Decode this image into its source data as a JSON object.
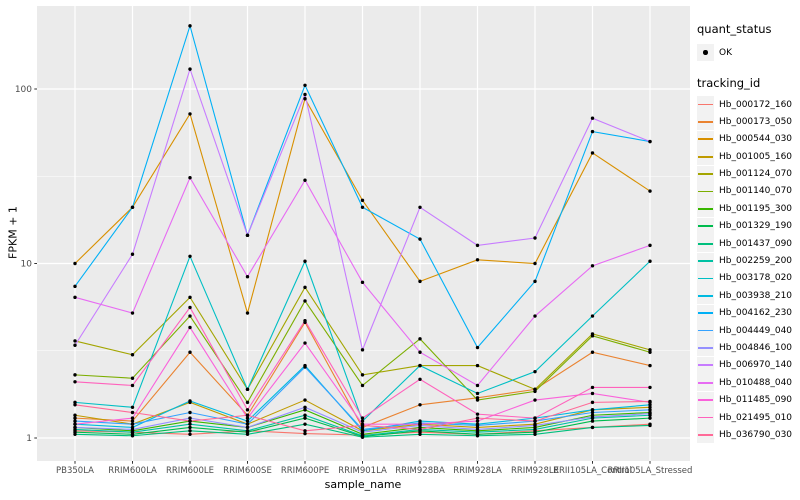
{
  "chart_data": {
    "type": "line",
    "title": "",
    "xlabel": "sample_name",
    "ylabel": "FPKM + 1",
    "y_scale": "log10",
    "ylim": [
      0.95,
      310
    ],
    "y_ticks": [
      1,
      10,
      100
    ],
    "y_tick_labels": [
      "1",
      "10",
      "100"
    ],
    "grid": "on",
    "panel_background": "#EBEBEB",
    "grid_color": "#FFFFFF",
    "point_marker": {
      "shape": "circle",
      "color": "#000000"
    },
    "legend": {
      "position": "right",
      "quant_status_title": "quant_status",
      "quant_status_items": [
        "OK"
      ],
      "tracking_id_title": "tracking_id"
    },
    "categories": [
      "PB350LA",
      "RRIM600LA",
      "RRIM600LE",
      "RRIM600SE",
      "RRIM600PE",
      "RRIM901LA",
      "RRIM928BA",
      "RRIM928LA",
      "RRIM928LE",
      "RRII105LA_Control",
      "RRII105LA_Stressed"
    ],
    "series": [
      {
        "name": "Hb_000172_160",
        "color": "#F8766D",
        "values": [
          1.1,
          1.08,
          1.05,
          1.1,
          1.06,
          1.04,
          1.08,
          1.05,
          1.1,
          1.15,
          1.2
        ]
      },
      {
        "name": "Hb_000173_050",
        "color": "#EA8331",
        "values": [
          1.3,
          1.25,
          3.1,
          1.35,
          4.6,
          1.15,
          1.55,
          1.7,
          1.9,
          3.1,
          2.6
        ]
      },
      {
        "name": "Hb_000544_030",
        "color": "#D89000",
        "values": [
          10.0,
          21.0,
          72.0,
          5.2,
          88.0,
          23.0,
          7.9,
          10.5,
          10.0,
          43.0,
          26.0
        ]
      },
      {
        "name": "Hb_001005_160",
        "color": "#C09B00",
        "values": [
          1.35,
          1.2,
          1.6,
          1.2,
          1.65,
          1.1,
          1.2,
          1.15,
          1.2,
          1.45,
          1.5
        ]
      },
      {
        "name": "Hb_001124_070",
        "color": "#A3A500",
        "values": [
          3.6,
          3.0,
          6.4,
          1.9,
          7.3,
          2.3,
          2.6,
          2.6,
          1.9,
          3.95,
          3.2
        ]
      },
      {
        "name": "Hb_001140_070",
        "color": "#7CAE00",
        "values": [
          2.3,
          2.2,
          5.0,
          1.6,
          6.1,
          2.0,
          3.7,
          1.65,
          1.85,
          3.85,
          3.1
        ]
      },
      {
        "name": "Hb_001195_300",
        "color": "#39B600",
        "values": [
          1.15,
          1.1,
          1.25,
          1.15,
          1.45,
          1.05,
          1.15,
          1.1,
          1.15,
          1.35,
          1.4
        ]
      },
      {
        "name": "Hb_001329_190",
        "color": "#00BB4E",
        "values": [
          1.08,
          1.05,
          1.15,
          1.08,
          1.3,
          1.02,
          1.1,
          1.05,
          1.08,
          1.25,
          1.3
        ]
      },
      {
        "name": "Hb_001437_090",
        "color": "#00BF7D",
        "values": [
          1.05,
          1.03,
          1.1,
          1.05,
          1.2,
          1.01,
          1.05,
          1.03,
          1.05,
          1.15,
          1.18
        ]
      },
      {
        "name": "Hb_002259_200",
        "color": "#00C1A3",
        "values": [
          1.12,
          1.08,
          1.2,
          1.1,
          1.35,
          1.03,
          1.12,
          1.08,
          1.12,
          1.3,
          1.35
        ]
      },
      {
        "name": "Hb_003178_020",
        "color": "#00BFC4",
        "values": [
          1.6,
          1.5,
          11.0,
          1.9,
          10.3,
          1.25,
          2.6,
          1.8,
          2.4,
          5.0,
          10.3
        ]
      },
      {
        "name": "Hb_003938_210",
        "color": "#00BAE0",
        "values": [
          1.2,
          1.15,
          1.63,
          1.25,
          2.6,
          1.1,
          1.25,
          1.2,
          1.3,
          1.45,
          1.55
        ]
      },
      {
        "name": "Hb_004162_230",
        "color": "#00B0F6",
        "values": [
          7.4,
          21.0,
          230.0,
          14.5,
          105.0,
          21.0,
          13.8,
          3.3,
          7.9,
          57.0,
          50.0
        ]
      },
      {
        "name": "Hb_004449_040",
        "color": "#35A2FF",
        "values": [
          1.25,
          1.2,
          1.4,
          1.2,
          2.55,
          1.12,
          1.22,
          1.18,
          1.25,
          1.4,
          1.45
        ]
      },
      {
        "name": "Hb_004846_100",
        "color": "#9590FF",
        "values": [
          1.15,
          1.12,
          1.3,
          1.15,
          1.5,
          1.08,
          1.18,
          1.12,
          1.18,
          1.32,
          1.38
        ]
      },
      {
        "name": "Hb_006970_140",
        "color": "#C77CFF",
        "values": [
          3.4,
          11.3,
          130.0,
          14.5,
          93.0,
          3.2,
          21.0,
          12.7,
          14.0,
          68.0,
          50.0
        ]
      },
      {
        "name": "Hb_010488_040",
        "color": "#E76BF3",
        "values": [
          6.4,
          5.2,
          31.0,
          8.4,
          30.0,
          7.8,
          3.1,
          2.0,
          5.0,
          9.7,
          12.7
        ]
      },
      {
        "name": "Hb_011485_090",
        "color": "#FA62DB",
        "values": [
          1.2,
          1.3,
          4.3,
          1.3,
          3.5,
          1.2,
          1.2,
          1.25,
          1.65,
          1.8,
          1.6
        ]
      },
      {
        "name": "Hb_021495_010",
        "color": "#FF62BC",
        "values": [
          2.1,
          2.0,
          5.6,
          1.45,
          4.7,
          1.3,
          2.17,
          1.37,
          1.3,
          1.95,
          1.95
        ]
      },
      {
        "name": "Hb_036790_030",
        "color": "#FF6A98",
        "values": [
          1.55,
          1.4,
          1.25,
          1.35,
          1.1,
          1.18,
          1.12,
          1.3,
          1.25,
          1.6,
          1.62
        ]
      }
    ]
  }
}
